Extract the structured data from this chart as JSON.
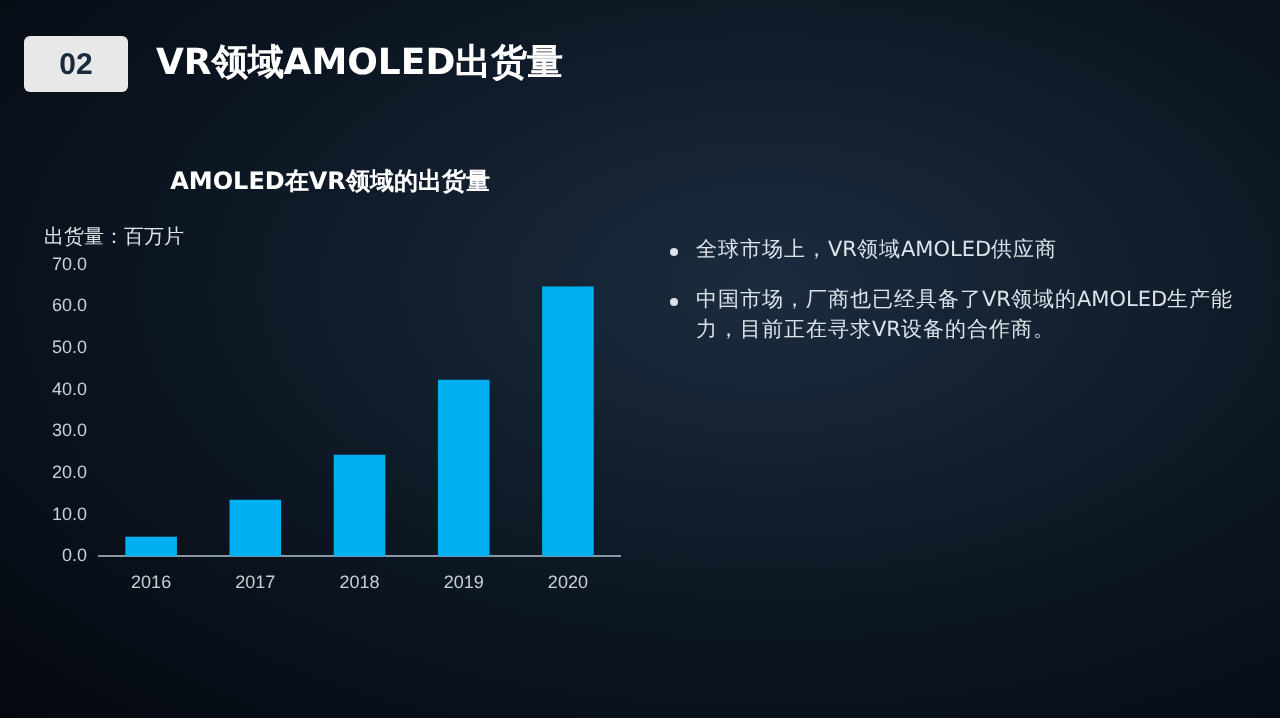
{
  "chart_data": {
    "type": "bar",
    "title": "AMOLED在VR领域的出货量",
    "ylabel": "出货量：百万片",
    "categories": [
      "2016",
      "2017",
      "2018",
      "2019",
      "2020"
    ],
    "values": [
      4.7,
      13.6,
      24.4,
      42.4,
      64.8
    ],
    "color": "#00b0f0",
    "ylim": [
      0,
      70
    ],
    "yticks": [
      {
        "value": 0,
        "label": "0.0"
      },
      {
        "value": 10,
        "label": "10.0"
      },
      {
        "value": 20,
        "label": "20.0"
      },
      {
        "value": 30,
        "label": "30.0"
      },
      {
        "value": 40,
        "label": "40.0"
      },
      {
        "value": 50,
        "label": "50.0"
      },
      {
        "value": 60,
        "label": "60.0"
      },
      {
        "value": 70,
        "label": "70.0"
      }
    ],
    "grid": false,
    "legend": false,
    "annotations": [
      "02",
      "VR领域AMOLED出货量",
      "全球市场上，VR领域AMOLED供应商",
      "中国市场，厂商也已经具备了VR领域的AMOLED生产能力，目前正在寻求VR设备的合作商。"
    ]
  }
}
